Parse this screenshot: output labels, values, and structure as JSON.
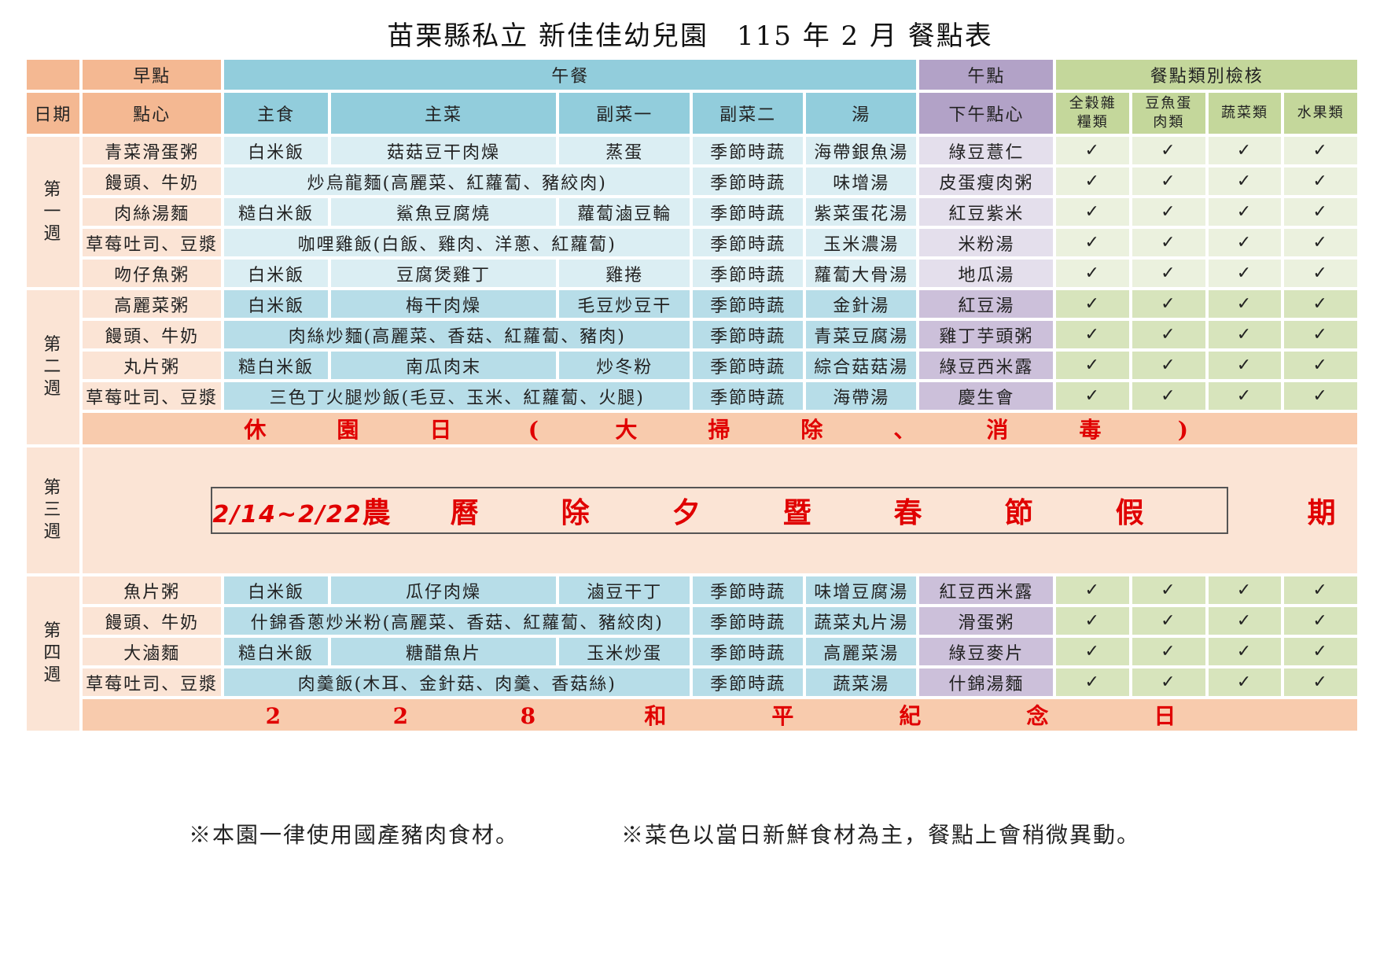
{
  "title": "苗栗縣私立 新佳佳幼兒園　115 年 2 月 餐點表",
  "header": {
    "group_breakfast": "早點",
    "group_lunch": "午餐",
    "group_snack": "午點",
    "group_check": "餐點類別檢核",
    "col_date": "日期",
    "col_breakfast": "點心",
    "col_staple": "主食",
    "col_main": "主菜",
    "col_side1": "副菜一",
    "col_side2": "副菜二",
    "col_soup": "湯",
    "col_snack": "下午點心",
    "col_grain": "全穀雜糧類",
    "col_protein": "豆魚蛋肉類",
    "col_veg": "蔬菜類",
    "col_fruit": "水果類"
  },
  "check_mark": "✓",
  "weeks": [
    {
      "label": "第一週",
      "rows": [
        {
          "breakfast": "青菜滑蛋粥",
          "staple": "白米飯",
          "main": "菇菇豆干肉燥",
          "side1": "蒸蛋",
          "side2": "季節時蔬",
          "soup": "海帶銀魚湯",
          "snack": "綠豆薏仁"
        },
        {
          "breakfast": "饅頭、牛奶",
          "combined": "炒烏龍麵(高麗菜、紅蘿蔔、豬絞肉)",
          "side2": "季節時蔬",
          "soup": "味增湯",
          "snack": "皮蛋瘦肉粥"
        },
        {
          "breakfast": "肉絲湯麵",
          "staple": "糙白米飯",
          "main": "鯊魚豆腐燒",
          "side1": "蘿蔔滷豆輪",
          "side2": "季節時蔬",
          "soup": "紫菜蛋花湯",
          "snack": "紅豆紫米"
        },
        {
          "breakfast": "草莓吐司、豆漿",
          "combined": "咖哩雞飯(白飯、雞肉、洋蔥、紅蘿蔔)",
          "side2": "季節時蔬",
          "soup": "玉米濃湯",
          "snack": "米粉湯"
        },
        {
          "breakfast": "吻仔魚粥",
          "staple": "白米飯",
          "main": "豆腐煲雞丁",
          "side1": "雞捲",
          "side2": "季節時蔬",
          "soup": "蘿蔔大骨湯",
          "snack": "地瓜湯"
        }
      ]
    },
    {
      "label": "第二週",
      "rows": [
        {
          "breakfast": "高麗菜粥",
          "staple": "白米飯",
          "main": "梅干肉燥",
          "side1": "毛豆炒豆干",
          "side2": "季節時蔬",
          "soup": "金針湯",
          "snack": "紅豆湯"
        },
        {
          "breakfast": "饅頭、牛奶",
          "combined": "肉絲炒麵(高麗菜、香菇、紅蘿蔔、豬肉)",
          "side2": "季節時蔬",
          "soup": "青菜豆腐湯",
          "snack": "雞丁芋頭粥"
        },
        {
          "breakfast": "丸片粥",
          "staple": "糙白米飯",
          "main": "南瓜肉末",
          "side1": "炒冬粉",
          "side2": "季節時蔬",
          "soup": "綜合菇菇湯",
          "snack": "綠豆西米露"
        },
        {
          "breakfast": "草莓吐司、豆漿",
          "combined": "三色丁火腿炒飯(毛豆、玉米、紅蘿蔔、火腿)",
          "side2": "季節時蔬",
          "soup": "海帶湯",
          "snack": "慶生會"
        }
      ],
      "closure": [
        "休",
        "園",
        "日",
        "(",
        "大",
        "掃",
        "除",
        "、",
        "消",
        "毒",
        ")"
      ]
    },
    {
      "label": "第三週",
      "holiday_dates": "2/14~2/22",
      "holiday_chars": [
        "農",
        "曆",
        "除",
        "夕",
        "暨",
        "春",
        "節",
        "假",
        "期"
      ]
    },
    {
      "label": "第四週",
      "rows": [
        {
          "breakfast": "魚片粥",
          "staple": "白米飯",
          "main": "瓜仔肉燥",
          "side1": "滷豆干丁",
          "side2": "季節時蔬",
          "soup": "味增豆腐湯",
          "snack": "紅豆西米露"
        },
        {
          "breakfast": "饅頭、牛奶",
          "combined": "什錦香蔥炒米粉(高麗菜、香菇、紅蘿蔔、豬絞肉)",
          "side2": "季節時蔬",
          "soup": "蔬菜丸片湯",
          "snack": "滑蛋粥"
        },
        {
          "breakfast": "大滷麵",
          "staple": "糙白米飯",
          "main": "糖醋魚片",
          "side1": "玉米炒蛋",
          "side2": "季節時蔬",
          "soup": "高麗菜湯",
          "snack": "綠豆麥片"
        },
        {
          "breakfast": "草莓吐司、豆漿",
          "combined": "肉羹飯(木耳、金針菇、肉羹、香菇絲)",
          "side2": "季節時蔬",
          "soup": "蔬菜湯",
          "snack": "什錦湯麵"
        }
      ],
      "closure": [
        "2",
        "2",
        "8",
        "和",
        "平",
        "紀",
        "念",
        "日"
      ]
    }
  ],
  "notes": {
    "note1": "※本園一律使用國產豬肉食材。",
    "note2": "※菜色以當日新鮮食材為主，餐點上會稍微異動。"
  },
  "colors": {
    "peach_header": "#f4b892",
    "blue_header": "#92cddc",
    "purple_header": "#b2a2c7",
    "green_header": "#c4d79b",
    "closure_text": "#e00000"
  }
}
